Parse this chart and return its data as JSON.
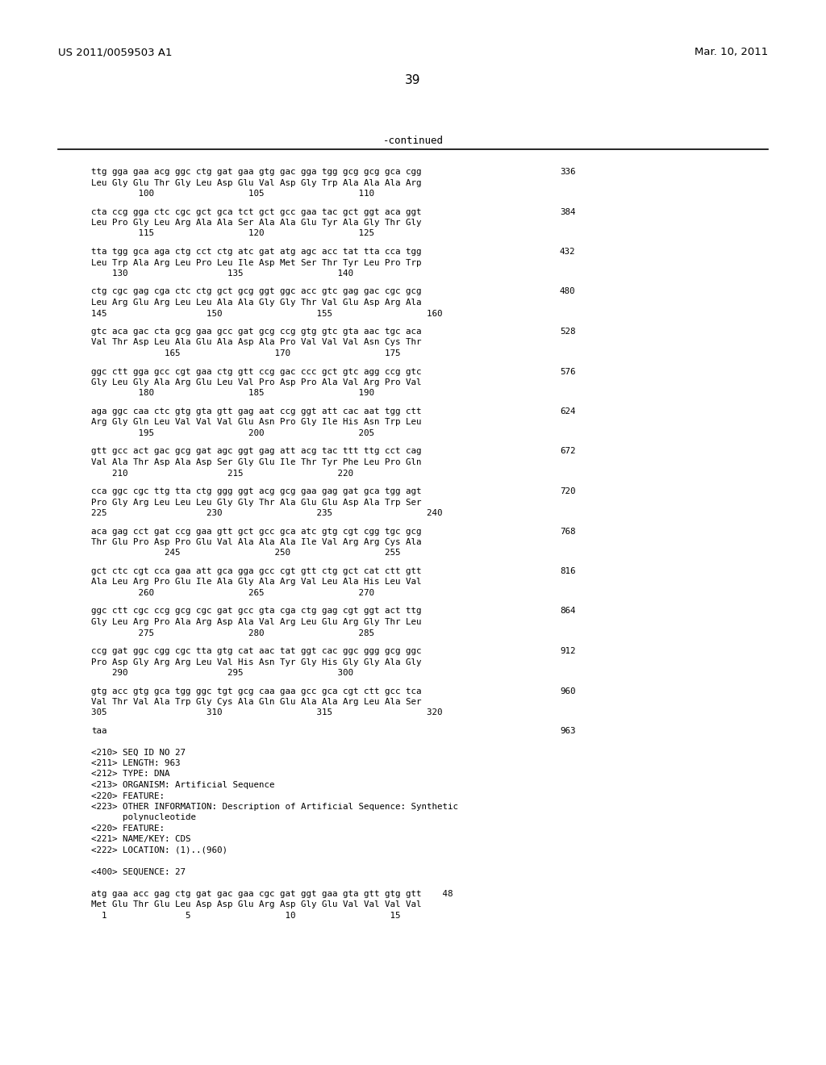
{
  "header_left": "US 2011/0059503 A1",
  "header_right": "Mar. 10, 2011",
  "page_number": "39",
  "continued_label": "-continued",
  "background_color": "#ffffff",
  "text_color": "#000000",
  "content_blocks": [
    {
      "dna": "ttg gga gaa acg ggc ctg gat gaa gtg gac gga tgg gcg gcg gca cgg",
      "aa": "Leu Gly Glu Thr Gly Leu Asp Glu Val Asp Gly Trp Ala Ala Ala Arg",
      "nums": "         100                  105                  110",
      "right_num": "336"
    },
    {
      "dna": "cta ccg gga ctc cgc gct gca tct gct gcc gaa tac gct ggt aca ggt",
      "aa": "Leu Pro Gly Leu Arg Ala Ala Ser Ala Ala Glu Tyr Ala Gly Thr Gly",
      "nums": "         115                  120                  125",
      "right_num": "384"
    },
    {
      "dna": "tta tgg gca aga ctg cct ctg atc gat atg agc acc tat tta cca tgg",
      "aa": "Leu Trp Ala Arg Leu Pro Leu Ile Asp Met Ser Thr Tyr Leu Pro Trp",
      "nums": "    130                   135                  140",
      "right_num": "432"
    },
    {
      "dna": "ctg cgc gag cga ctc ctg gct gcg ggt ggc acc gtc gag gac cgc gcg",
      "aa": "Leu Arg Glu Arg Leu Leu Ala Ala Gly Gly Thr Val Glu Asp Arg Ala",
      "nums": "145                   150                  155                  160",
      "right_num": "480"
    },
    {
      "dna": "gtc aca gac cta gcg gaa gcc gat gcg ccg gtg gtc gta aac tgc aca",
      "aa": "Val Thr Asp Leu Ala Glu Ala Asp Ala Pro Val Val Val Asn Cys Thr",
      "nums": "              165                  170                  175",
      "right_num": "528"
    },
    {
      "dna": "ggc ctt gga gcc cgt gaa ctg gtt ccg gac ccc gct gtc agg ccg gtc",
      "aa": "Gly Leu Gly Ala Arg Glu Leu Val Pro Asp Pro Ala Val Arg Pro Val",
      "nums": "         180                  185                  190",
      "right_num": "576"
    },
    {
      "dna": "aga ggc caa ctc gtg gta gtt gag aat ccg ggt att cac aat tgg ctt",
      "aa": "Arg Gly Gln Leu Val Val Val Glu Asn Pro Gly Ile His Asn Trp Leu",
      "nums": "         195                  200                  205",
      "right_num": "624"
    },
    {
      "dna": "gtt gcc act gac gcg gat agc ggt gag att acg tac ttt ttg cct cag",
      "aa": "Val Ala Thr Asp Ala Asp Ser Gly Glu Ile Thr Tyr Phe Leu Pro Gln",
      "nums": "    210                   215                  220",
      "right_num": "672"
    },
    {
      "dna": "cca ggc cgc ttg tta ctg ggg ggt acg gcg gaa gag gat gca tgg agt",
      "aa": "Pro Gly Arg Leu Leu Leu Gly Gly Thr Ala Glu Glu Asp Ala Trp Ser",
      "nums": "225                   230                  235                  240",
      "right_num": "720"
    },
    {
      "dna": "aca gag cct gat ccg gaa gtt gct gcc gca atc gtg cgt cgg tgc gcg",
      "aa": "Thr Glu Pro Asp Pro Glu Val Ala Ala Ala Ile Val Arg Arg Cys Ala",
      "nums": "              245                  250                  255",
      "right_num": "768"
    },
    {
      "dna": "gct ctc cgt cca gaa att gca gga gcc cgt gtt ctg gct cat ctt gtt",
      "aa": "Ala Leu Arg Pro Glu Ile Ala Gly Ala Arg Val Leu Ala His Leu Val",
      "nums": "         260                  265                  270",
      "right_num": "816"
    },
    {
      "dna": "ggc ctt cgc ccg gcg cgc gat gcc gta cga ctg gag cgt ggt act ttg",
      "aa": "Gly Leu Arg Pro Ala Arg Asp Ala Val Arg Leu Glu Arg Gly Thr Leu",
      "nums": "         275                  280                  285",
      "right_num": "864"
    },
    {
      "dna": "ccg gat ggc cgg cgc tta gtg cat aac tat ggt cac ggc ggg gcg ggc",
      "aa": "Pro Asp Gly Arg Arg Leu Val His Asn Tyr Gly His Gly Gly Ala Gly",
      "nums": "    290                   295                  300",
      "right_num": "912"
    },
    {
      "dna": "gtg acc gtg gca tgg ggc tgt gcg caa gaa gcc gca cgt ctt gcc tca",
      "aa": "Val Thr Val Ala Trp Gly Cys Ala Gln Glu Ala Ala Arg Leu Ala Ser",
      "nums": "305                   310                  315                  320",
      "right_num": "960"
    },
    {
      "dna": "taa",
      "aa": "",
      "nums": "",
      "right_num": "963"
    }
  ],
  "annotation_lines": [
    "<210> SEQ ID NO 27",
    "<211> LENGTH: 963",
    "<212> TYPE: DNA",
    "<213> ORGANISM: Artificial Sequence",
    "<220> FEATURE:",
    "<223> OTHER INFORMATION: Description of Artificial Sequence: Synthetic",
    "      polynucleotide",
    "<220> FEATURE:",
    "<221> NAME/KEY: CDS",
    "<222> LOCATION: (1)..(960)",
    "",
    "<400> SEQUENCE: 27",
    "",
    "atg gaa acc gag ctg gat gac gaa cgc gat ggt gaa gta gtt gtg gtt    48",
    "Met Glu Thr Glu Leu Asp Asp Glu Arg Asp Gly Glu Val Val Val Val",
    "  1               5                  10                  15"
  ],
  "fig_width": 10.24,
  "fig_height": 13.2,
  "dpi": 100
}
